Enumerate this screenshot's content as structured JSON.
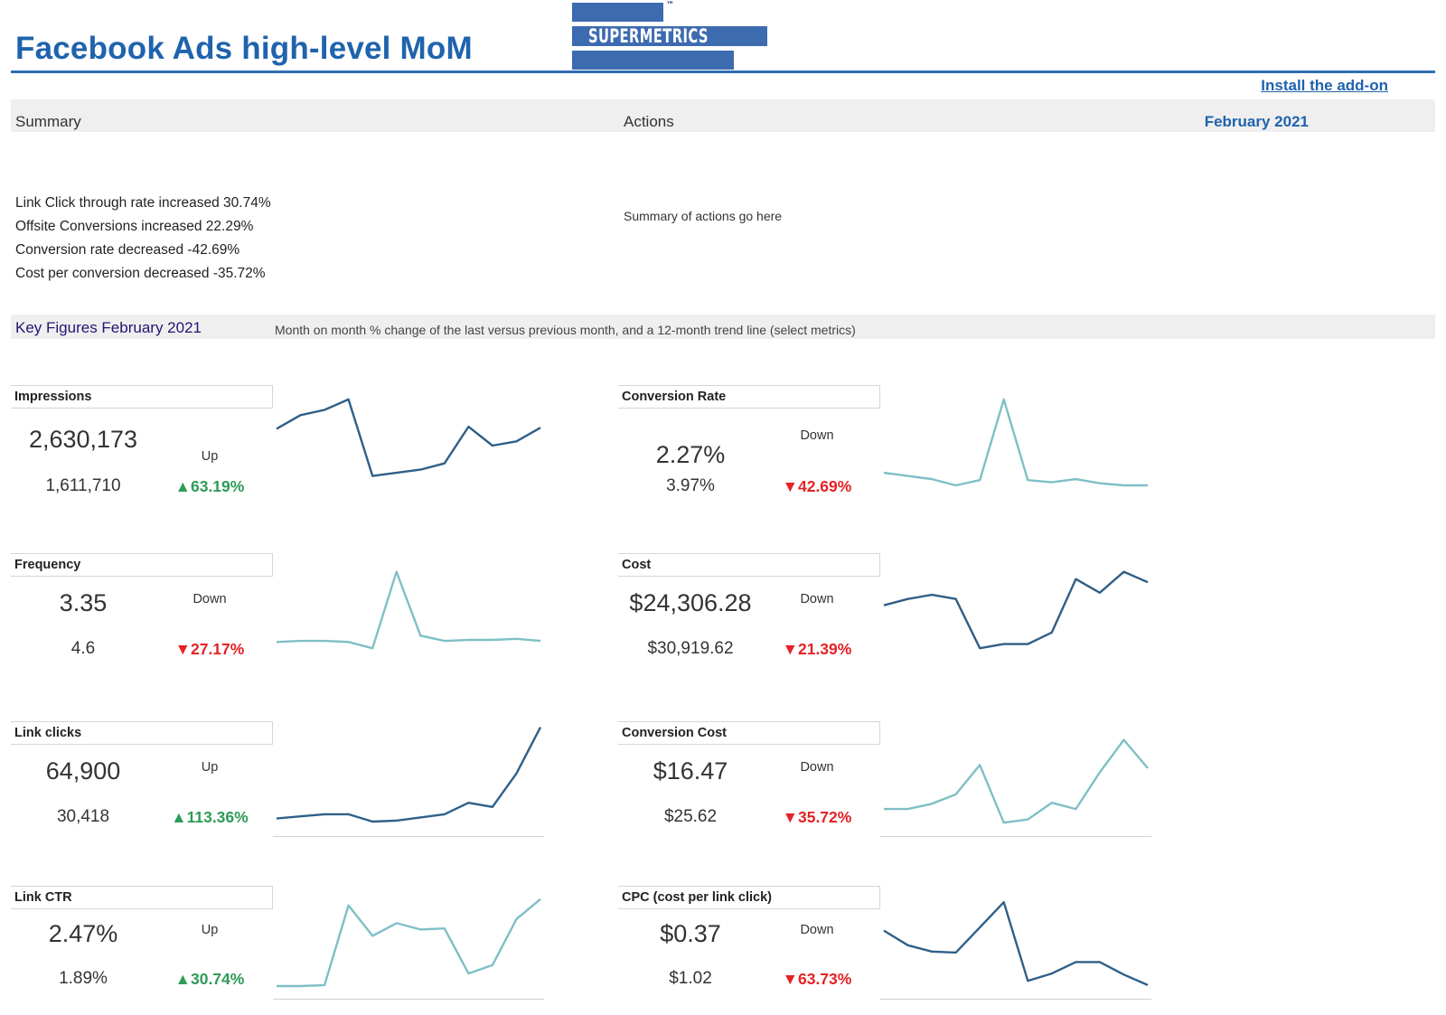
{
  "header": {
    "title": "Facebook Ads high-level MoM",
    "logo_text": "SUPERMETRICS",
    "logo_tm": "™",
    "install_link": "Install the add-on"
  },
  "summary_band": {
    "summary_label": "Summary",
    "actions_label": "Actions",
    "month": "February 2021"
  },
  "summary_lines": [
    "Link Click through rate increased 30.74%",
    "Offsite Conversions increased 22.29%",
    "Conversion rate decreased -42.69%",
    "Cost per conversion decreased -35.72%"
  ],
  "actions_text": "Summary of actions go here",
  "key_figures": {
    "title": "Key Figures February 2021",
    "description": "Month on month % change of the last versus previous month, and a 12-month trend line (select metrics)"
  },
  "colors": {
    "brand_blue": "#1f63ad",
    "up_green": "#2e9b57",
    "down_red": "#e52225",
    "spark_dark": "#2f5f88",
    "spark_light": "#7fbfc6"
  },
  "metrics": [
    {
      "id": "impressions",
      "label": "Impressions",
      "current": "2,630,173",
      "previous": "1,611,710",
      "direction": "Up",
      "change": "▲63.19%",
      "trend_class": "up",
      "spark_color": "#2f5f88",
      "trend": [
        60,
        73,
        78,
        88,
        15,
        18,
        21,
        27,
        62,
        44,
        48,
        61
      ]
    },
    {
      "id": "conversion-rate",
      "label": "Conversion Rate",
      "current": "2.27%",
      "previous": "3.97%",
      "direction": "Down",
      "change": "▼42.69%",
      "trend_class": "down",
      "spark_color": "#7fbfc6",
      "trend": [
        18,
        15,
        12,
        6,
        11,
        88,
        11,
        9,
        12,
        8,
        6,
        6
      ]
    },
    {
      "id": "frequency",
      "label": "Frequency",
      "current": "3.35",
      "previous": "4.6",
      "direction": "Down",
      "change": "▼27.17%",
      "trend_class": "down",
      "spark_color": "#7fbfc6",
      "trend": [
        17,
        18,
        18,
        17,
        11,
        84,
        23,
        18,
        19,
        19,
        20,
        18
      ]
    },
    {
      "id": "cost",
      "label": "Cost",
      "current": "$24,306.28",
      "previous": "$30,919.62",
      "direction": "Down",
      "change": "▼21.39%",
      "trend_class": "down",
      "spark_color": "#2f5f88",
      "trend": [
        52,
        58,
        62,
        58,
        11,
        15,
        15,
        26,
        77,
        64,
        84,
        74
      ]
    },
    {
      "id": "link-clicks",
      "label": "Link clicks",
      "current": "64,900",
      "previous": "30,418",
      "direction": "Up",
      "change": "▲113.36%",
      "trend_class": "up",
      "spark_color": "#2f5f88",
      "trend": [
        9,
        11,
        13,
        13,
        6,
        7,
        10,
        13,
        24,
        20,
        52,
        96
      ]
    },
    {
      "id": "conversion-cost",
      "label": "Conversion Cost",
      "current": "$16.47",
      "previous": "$25.62",
      "direction": "Down",
      "change": "▼35.72%",
      "trend_class": "down",
      "spark_color": "#7fbfc6",
      "trend": [
        18,
        18,
        23,
        32,
        60,
        5,
        8,
        24,
        18,
        53,
        84,
        57
      ]
    },
    {
      "id": "link-ctr",
      "label": "Link CTR",
      "current": "2.47%",
      "previous": "1.89%",
      "direction": "Up",
      "change": "▲30.74%",
      "trend_class": "up",
      "spark_color": "#7fbfc6",
      "trend": [
        6,
        6,
        7,
        83,
        54,
        66,
        60,
        61,
        18,
        26,
        70,
        89
      ]
    },
    {
      "id": "cpc",
      "label": "CPC (cost per link click)",
      "current": "$0.37",
      "previous": "$1.02",
      "direction": "Down",
      "change": "▼63.73%",
      "trend_class": "down",
      "spark_color": "#2f5f88",
      "trend": [
        59,
        45,
        39,
        38,
        62,
        86,
        11,
        18,
        29,
        29,
        17,
        7
      ]
    }
  ]
}
